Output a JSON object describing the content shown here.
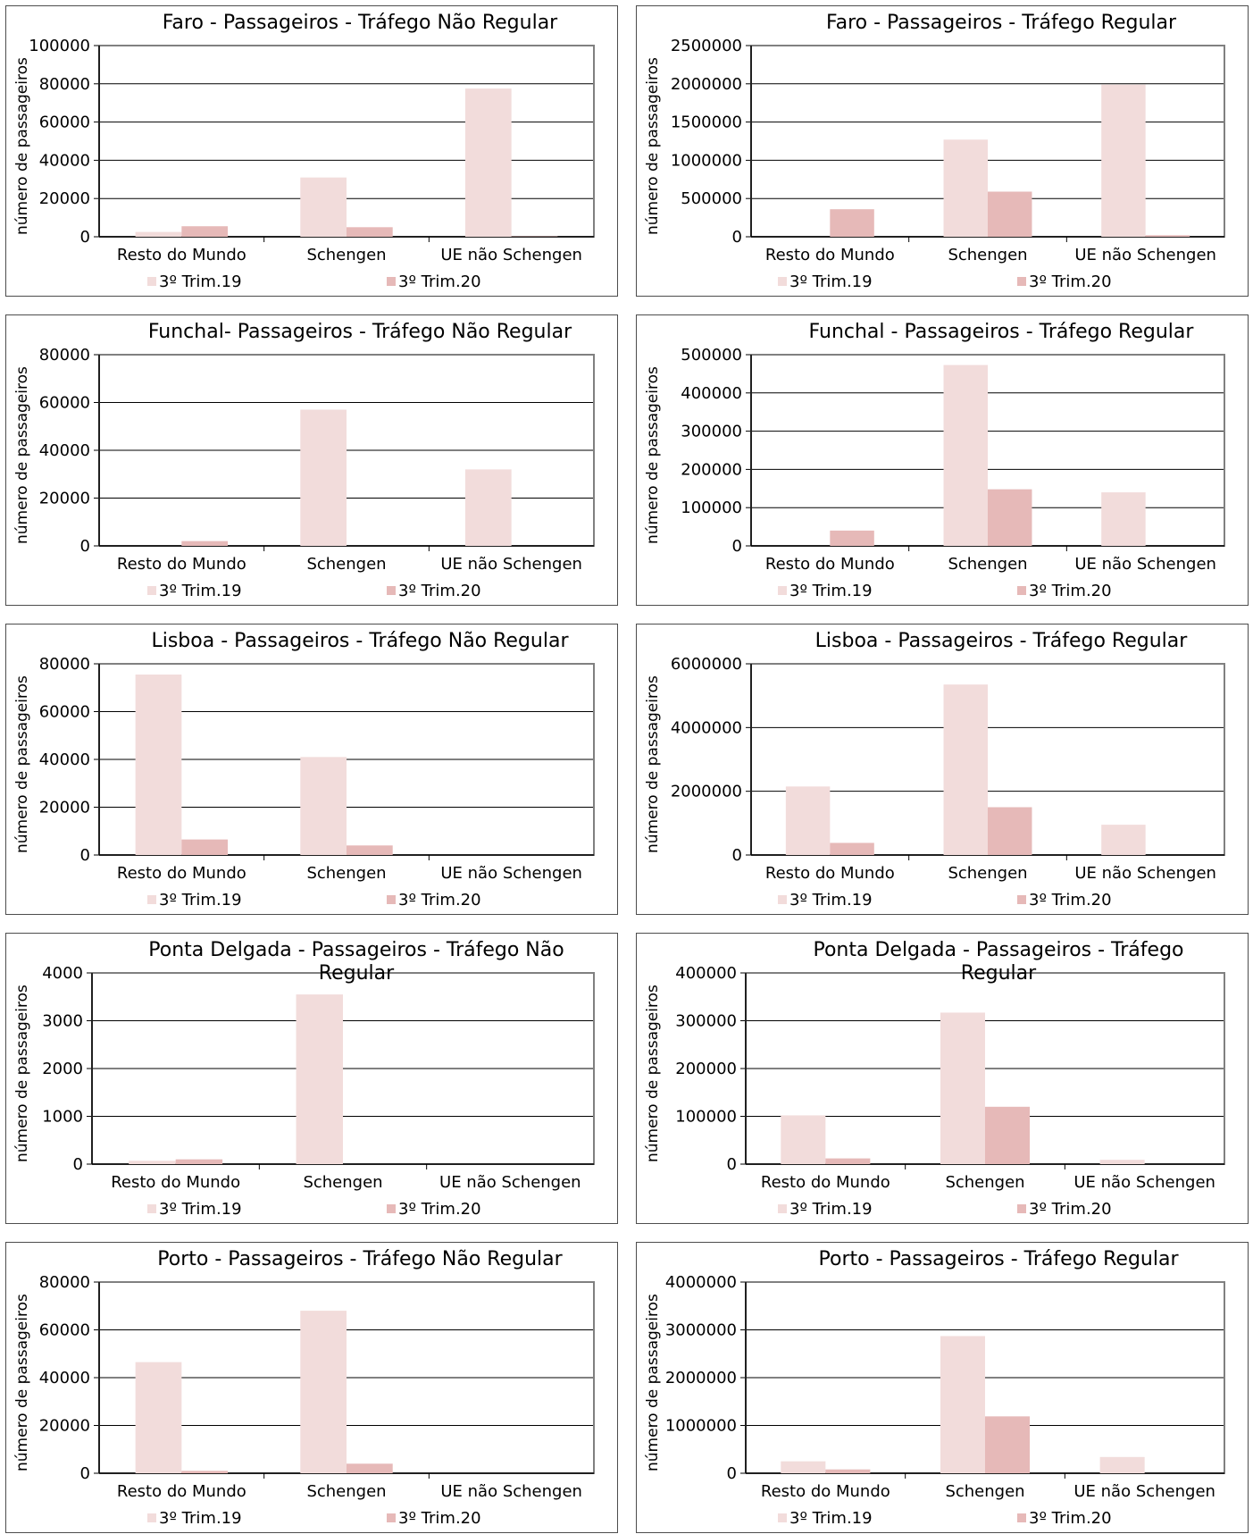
{
  "legend": [
    "3º Trim.19",
    "3º Trim.20"
  ],
  "colors": {
    "series1": "#f2dcdb",
    "series2": "#e6b9b8",
    "frame": "#808080",
    "grid": "#000000"
  },
  "ylabel": "número de passageiros",
  "categories": [
    "Resto do Mundo",
    "Schengen",
    "UE não Schengen"
  ],
  "chart_data": [
    {
      "type": "bar",
      "title": "Faro - Passageiros - Tráfego Não Regular",
      "ylabel": "número de passageiros",
      "categories": [
        "Resto do Mundo",
        "Schengen",
        "UE não Schengen"
      ],
      "series": [
        {
          "name": "3º Trim.19",
          "values": [
            2500,
            31000,
            77500
          ]
        },
        {
          "name": "3º Trim.20",
          "values": [
            5500,
            5000,
            200
          ]
        }
      ],
      "yticks": [
        "0",
        "20000",
        "40000",
        "60000",
        "80000",
        "100000"
      ],
      "ylim": [
        0,
        100000
      ],
      "grid": true,
      "legend": "bottom"
    },
    {
      "type": "bar",
      "title": "Faro - Passageiros - Tráfego Regular",
      "ylabel": "número de passageiros",
      "categories": [
        "Resto do Mundo",
        "Schengen",
        "UE não Schengen"
      ],
      "series": [
        {
          "name": "3º Trim.19",
          "values": [
            0,
            1270000,
            1990000
          ]
        },
        {
          "name": "3º Trim.20",
          "values": [
            360000,
            590000,
            20000
          ]
        }
      ],
      "yticks": [
        "0",
        "500000",
        "1000000",
        "1500000",
        "2000000",
        "2500000"
      ],
      "ylim": [
        0,
        2500000
      ],
      "grid": true,
      "legend": "bottom"
    },
    {
      "type": "bar",
      "title": "Funchal- Passageiros - Tráfego Não Regular",
      "ylabel": "número de passageiros",
      "categories": [
        "Resto do Mundo",
        "Schengen",
        "UE não Schengen"
      ],
      "series": [
        {
          "name": "3º Trim.19",
          "values": [
            0,
            57000,
            32000
          ]
        },
        {
          "name": "3º Trim.20",
          "values": [
            2000,
            0,
            0
          ]
        }
      ],
      "yticks": [
        "0",
        "20000",
        "40000",
        "60000",
        "80000"
      ],
      "ylim": [
        0,
        80000
      ],
      "grid": true,
      "legend": "bottom"
    },
    {
      "type": "bar",
      "title": "Funchal - Passageiros - Tráfego Regular",
      "ylabel": "número de passageiros",
      "categories": [
        "Resto do Mundo",
        "Schengen",
        "UE não Schengen"
      ],
      "series": [
        {
          "name": "3º Trim.19",
          "values": [
            0,
            473000,
            140000
          ]
        },
        {
          "name": "3º Trim.20",
          "values": [
            40000,
            148000,
            0
          ]
        }
      ],
      "yticks": [
        "0",
        "100000",
        "200000",
        "300000",
        "400000",
        "500000"
      ],
      "ylim": [
        0,
        500000
      ],
      "grid": true,
      "legend": "bottom"
    },
    {
      "type": "bar",
      "title": "Lisboa - Passageiros - Tráfego Não Regular",
      "ylabel": "número de passageiros",
      "categories": [
        "Resto do Mundo",
        "Schengen",
        "UE não Schengen"
      ],
      "series": [
        {
          "name": "3º Trim.19",
          "values": [
            75500,
            41000,
            0
          ]
        },
        {
          "name": "3º Trim.20",
          "values": [
            6500,
            4000,
            0
          ]
        }
      ],
      "yticks": [
        "0",
        "20000",
        "40000",
        "60000",
        "80000"
      ],
      "ylim": [
        0,
        80000
      ],
      "grid": true,
      "legend": "bottom"
    },
    {
      "type": "bar",
      "title": "Lisboa - Passageiros - Tráfego Regular",
      "ylabel": "número de passageiros",
      "categories": [
        "Resto do Mundo",
        "Schengen",
        "UE não Schengen"
      ],
      "series": [
        {
          "name": "3º Trim.19",
          "values": [
            2150000,
            5350000,
            950000
          ]
        },
        {
          "name": "3º Trim.20",
          "values": [
            380000,
            1500000,
            0
          ]
        }
      ],
      "yticks": [
        "0",
        "2000000",
        "4000000",
        "6000000"
      ],
      "ylim": [
        0,
        6000000
      ],
      "grid": true,
      "legend": "bottom"
    },
    {
      "type": "bar",
      "title": "Ponta Delgada - Passageiros - Tráfego Não Regular",
      "ylabel": "número de passageiros",
      "categories": [
        "Resto do Mundo",
        "Schengen",
        "UE não Schengen"
      ],
      "series": [
        {
          "name": "3º Trim.19",
          "values": [
            70,
            3550,
            0
          ]
        },
        {
          "name": "3º Trim.20",
          "values": [
            100,
            0,
            0
          ]
        }
      ],
      "yticks": [
        "0",
        "1000",
        "2000",
        "3000",
        "4000"
      ],
      "ylim": [
        0,
        4000
      ],
      "grid": true,
      "legend": "bottom"
    },
    {
      "type": "bar",
      "title": "Ponta Delgada - Passageiros - Tráfego Regular",
      "ylabel": "número de passageiros",
      "categories": [
        "Resto do Mundo",
        "Schengen",
        "UE não Schengen"
      ],
      "series": [
        {
          "name": "3º Trim.19",
          "values": [
            102000,
            317000,
            9000
          ]
        },
        {
          "name": "3º Trim.20",
          "values": [
            12000,
            120000,
            0
          ]
        }
      ],
      "yticks": [
        "0",
        "100000",
        "200000",
        "300000",
        "400000"
      ],
      "ylim": [
        0,
        400000
      ],
      "grid": true,
      "legend": "bottom"
    },
    {
      "type": "bar",
      "title": "Porto - Passageiros - Tráfego Não Regular",
      "ylabel": "número de passageiros",
      "categories": [
        "Resto do Mundo",
        "Schengen",
        "UE não Schengen"
      ],
      "series": [
        {
          "name": "3º Trim.19",
          "values": [
            46500,
            68000,
            0
          ]
        },
        {
          "name": "3º Trim.20",
          "values": [
            1000,
            4000,
            0
          ]
        }
      ],
      "yticks": [
        "0",
        "20000",
        "40000",
        "60000",
        "80000"
      ],
      "ylim": [
        0,
        80000
      ],
      "grid": true,
      "legend": "bottom"
    },
    {
      "type": "bar",
      "title": "Porto - Passageiros - Tráfego Regular",
      "ylabel": "número de passageiros",
      "categories": [
        "Resto do Mundo",
        "Schengen",
        "UE não Schengen"
      ],
      "series": [
        {
          "name": "3º Trim.19",
          "values": [
            250000,
            2870000,
            340000
          ]
        },
        {
          "name": "3º Trim.20",
          "values": [
            80000,
            1190000,
            0
          ]
        }
      ],
      "yticks": [
        "0",
        "1000000",
        "2000000",
        "3000000",
        "4000000"
      ],
      "ylim": [
        0,
        4000000
      ],
      "grid": true,
      "legend": "bottom"
    }
  ]
}
